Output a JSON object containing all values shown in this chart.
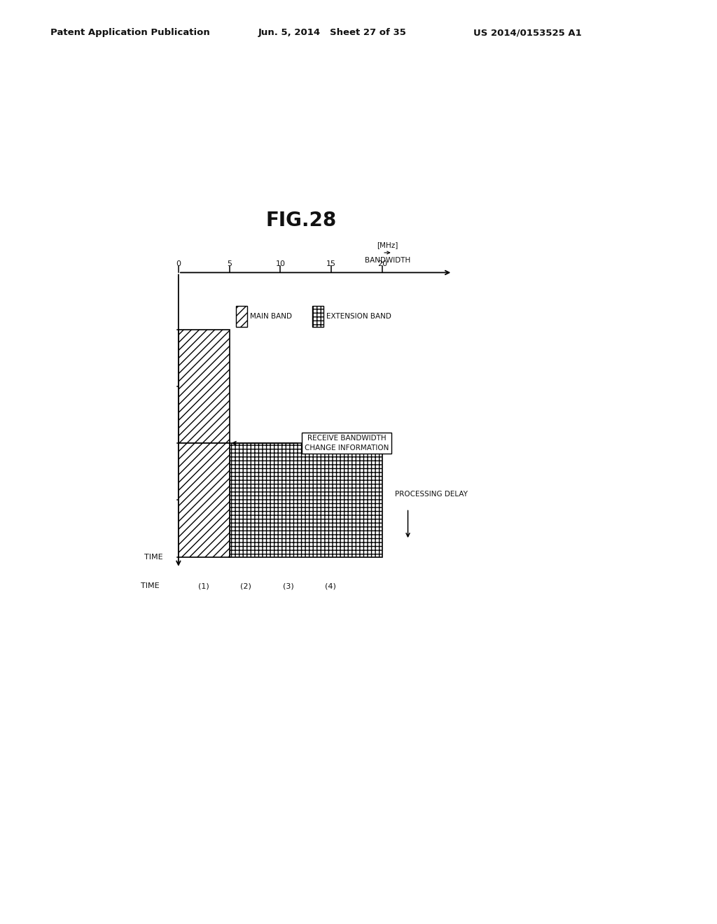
{
  "title": "FIG.28",
  "header_left": "Patent Application Publication",
  "header_mid": "Jun. 5, 2014   Sheet 27 of 35",
  "header_right": "US 2014/0153525 A1",
  "bandwidth_label_line1": "BANDWIDTH",
  "bandwidth_label_line2": "[MHz]",
  "time_label": "TIME",
  "x_ticks": [
    0,
    5,
    10,
    15,
    20
  ],
  "x_tick_labels": [
    "0",
    "5",
    "10",
    "15",
    "20"
  ],
  "time_slots": [
    "(1)",
    "(2)",
    "(3)",
    "(4)"
  ],
  "main_band_label": "MAIN BAND",
  "extension_band_label": "EXTENSION BAND",
  "receive_bw_info_line1": "RECEIVE BANDWIDTH",
  "receive_bw_info_line2": "CHANGE INFORMATION",
  "processing_delay_label": "PROCESSING DELAY",
  "background_color": "#ffffff",
  "text_color": "#111111"
}
